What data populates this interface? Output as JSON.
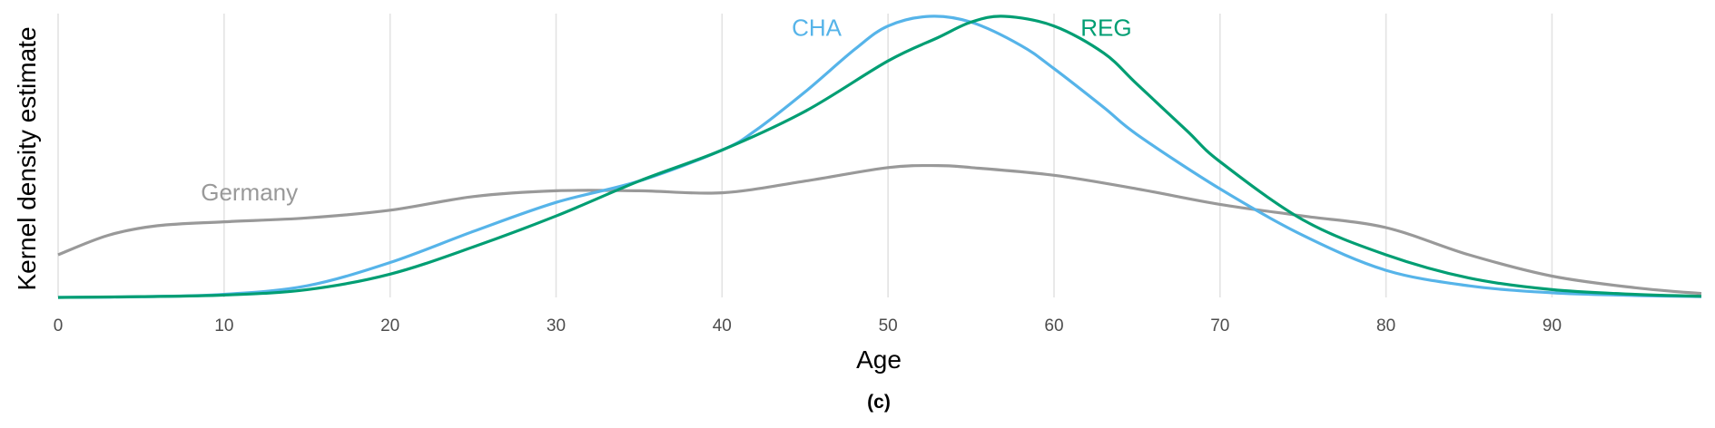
{
  "chart_data": {
    "type": "line",
    "title": "",
    "xlabel": "Age",
    "ylabel": "Kernel density estimate",
    "caption": "(c)",
    "xlim": [
      0,
      99
    ],
    "ylim": [
      0,
      1
    ],
    "y_ticks_shown": false,
    "x_ticks": [
      0,
      10,
      20,
      30,
      40,
      50,
      60,
      70,
      80,
      90
    ],
    "grid": "vertical major gridlines",
    "legend": "none (series labelled directly on the plot)",
    "series": [
      {
        "name": "CHA",
        "color": "#56b4e9",
        "x": [
          0,
          5,
          10,
          15,
          20,
          25,
          30,
          35,
          40,
          42,
          45,
          48,
          50,
          52.5,
          55,
          58,
          60,
          63,
          65,
          70,
          75,
          80,
          85,
          90,
          95,
          99
        ],
        "y": [
          0,
          0.002,
          0.008,
          0.03,
          0.09,
          0.17,
          0.245,
          0.3,
          0.38,
          0.43,
          0.53,
          0.64,
          0.7,
          0.725,
          0.71,
          0.65,
          0.59,
          0.49,
          0.42,
          0.28,
          0.16,
          0.07,
          0.03,
          0.012,
          0.005,
          0.002
        ]
      },
      {
        "name": "REG",
        "color": "#009e73",
        "x": [
          0,
          5,
          10,
          15,
          20,
          25,
          30,
          35,
          40,
          45,
          50,
          53,
          55,
          57,
          60,
          63,
          65,
          68,
          70,
          75,
          80,
          85,
          90,
          95,
          99
        ],
        "y": [
          0,
          0.002,
          0.006,
          0.02,
          0.06,
          0.13,
          0.21,
          0.3,
          0.38,
          0.48,
          0.61,
          0.67,
          0.71,
          0.725,
          0.7,
          0.63,
          0.55,
          0.43,
          0.35,
          0.2,
          0.11,
          0.05,
          0.02,
          0.008,
          0.003
        ]
      },
      {
        "name": "Germany",
        "color": "#999999",
        "x": [
          0,
          3,
          6,
          10,
          15,
          20,
          25,
          30,
          35,
          40,
          45,
          50,
          53,
          55,
          60,
          65,
          70,
          75,
          80,
          85,
          90,
          95,
          99
        ],
        "y": [
          0.11,
          0.16,
          0.185,
          0.195,
          0.205,
          0.225,
          0.26,
          0.275,
          0.275,
          0.27,
          0.3,
          0.335,
          0.34,
          0.335,
          0.315,
          0.28,
          0.24,
          0.21,
          0.18,
          0.11,
          0.055,
          0.025,
          0.01
        ]
      }
    ]
  }
}
